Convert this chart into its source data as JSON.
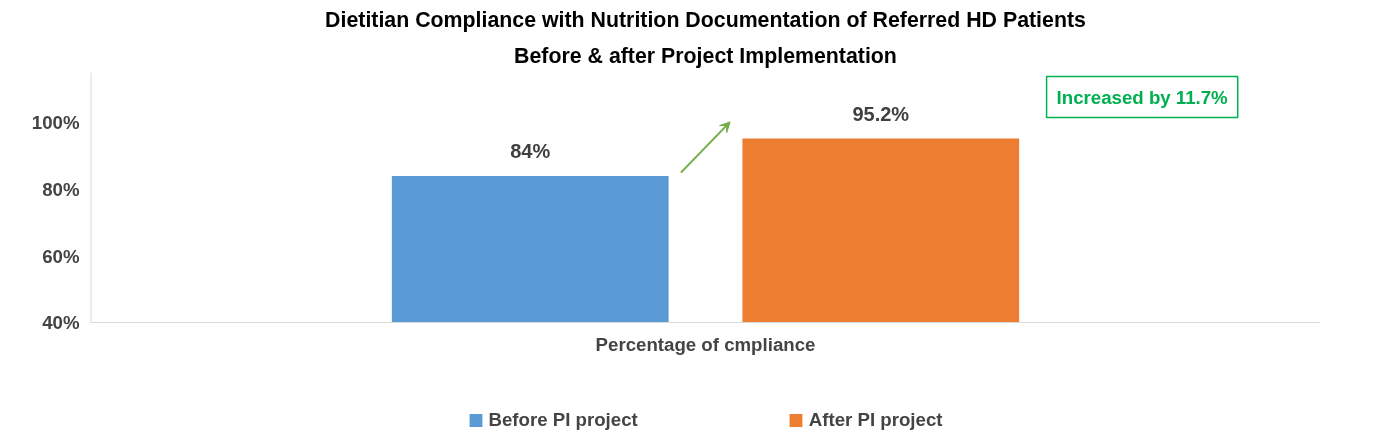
{
  "chart_data": {
    "type": "bar",
    "title": "Dietitian Compliance with Nutrition Documentation of Referred HD Patients",
    "subtitle": "Before & after Project Implementation",
    "categories": [
      "Percentage of cmpliance"
    ],
    "series": [
      {
        "name": "Before PI project",
        "color": "#5b9bd5",
        "values": [
          84
        ],
        "value_labels": [
          "84%"
        ]
      },
      {
        "name": "After PI project",
        "color": "#ed7d31",
        "values": [
          95.2
        ],
        "value_labels": [
          "95.2%"
        ]
      }
    ],
    "ylim": [
      40,
      115
    ],
    "yticks": [
      {
        "value": 40,
        "label": "40%"
      },
      {
        "value": 60,
        "label": "60%"
      },
      {
        "value": 80,
        "label": "80%"
      },
      {
        "value": 100,
        "label": "100%"
      }
    ],
    "grid": false,
    "legend": "bottom",
    "annotations": [
      "Increased by 11.7%"
    ]
  }
}
